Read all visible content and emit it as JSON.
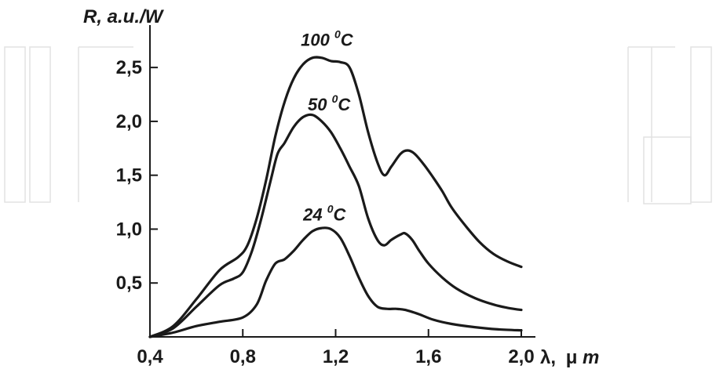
{
  "chart_data": {
    "type": "line",
    "title": "",
    "xlabel_symbol": "λ,",
    "xlabel_unit_mu": "μ",
    "xlabel_unit_m": "m",
    "ylabel": "R, a.u./W",
    "xlim": [
      0.4,
      2.0
    ],
    "ylim": [
      0.0,
      2.85
    ],
    "grid": false,
    "x_ticks": [
      0.4,
      0.8,
      1.2,
      1.6,
      2.0
    ],
    "x_tick_labels": [
      "0,4",
      "0,8",
      "1,2",
      "1,6",
      "2,0"
    ],
    "y_ticks": [
      0.5,
      1.0,
      1.5,
      2.0,
      2.5
    ],
    "y_tick_labels": [
      "0,5",
      "1,0",
      "1,5",
      "2,0",
      "2,5"
    ],
    "series": [
      {
        "label_main": "100 ",
        "label_sup": "0",
        "label_end": "C",
        "label_anchor": [
          1.05,
          2.7
        ],
        "x": [
          0.4,
          0.5,
          0.6,
          0.7,
          0.78,
          0.82,
          0.86,
          0.9,
          0.94,
          0.98,
          1.02,
          1.06,
          1.1,
          1.14,
          1.18,
          1.22,
          1.26,
          1.3,
          1.34,
          1.38,
          1.41,
          1.44,
          1.48,
          1.51,
          1.54,
          1.58,
          1.62,
          1.66,
          1.7,
          1.76,
          1.82,
          1.88,
          1.94,
          2.0
        ],
        "values": [
          0.0,
          0.1,
          0.35,
          0.62,
          0.74,
          0.85,
          1.1,
          1.45,
          1.86,
          2.18,
          2.4,
          2.53,
          2.59,
          2.59,
          2.56,
          2.55,
          2.5,
          2.25,
          1.9,
          1.62,
          1.5,
          1.58,
          1.7,
          1.73,
          1.7,
          1.6,
          1.48,
          1.35,
          1.2,
          1.03,
          0.88,
          0.77,
          0.7,
          0.65
        ]
      },
      {
        "label_main": "50 ",
        "label_sup": "0",
        "label_end": "C",
        "label_anchor": [
          1.08,
          2.1
        ],
        "x": [
          0.4,
          0.5,
          0.6,
          0.7,
          0.76,
          0.8,
          0.84,
          0.88,
          0.92,
          0.95,
          0.98,
          1.02,
          1.06,
          1.1,
          1.14,
          1.18,
          1.22,
          1.26,
          1.3,
          1.34,
          1.38,
          1.41,
          1.44,
          1.48,
          1.5,
          1.53,
          1.56,
          1.6,
          1.66,
          1.72,
          1.8,
          1.88,
          1.94,
          2.0
        ],
        "values": [
          0.0,
          0.08,
          0.28,
          0.48,
          0.54,
          0.6,
          0.8,
          1.1,
          1.45,
          1.7,
          1.8,
          1.95,
          2.04,
          2.06,
          2.0,
          1.9,
          1.75,
          1.58,
          1.4,
          1.1,
          0.9,
          0.85,
          0.9,
          0.95,
          0.96,
          0.9,
          0.8,
          0.68,
          0.55,
          0.45,
          0.36,
          0.3,
          0.27,
          0.25
        ]
      },
      {
        "label_main": "24 ",
        "label_sup": "0",
        "label_end": "C",
        "label_anchor": [
          1.06,
          1.08
        ],
        "x": [
          0.4,
          0.5,
          0.6,
          0.7,
          0.8,
          0.86,
          0.9,
          0.94,
          0.98,
          1.02,
          1.06,
          1.1,
          1.14,
          1.18,
          1.22,
          1.26,
          1.3,
          1.34,
          1.38,
          1.42,
          1.46,
          1.5,
          1.56,
          1.62,
          1.7,
          1.8,
          1.9,
          2.0
        ],
        "values": [
          0.0,
          0.04,
          0.1,
          0.14,
          0.18,
          0.3,
          0.52,
          0.68,
          0.72,
          0.8,
          0.9,
          0.98,
          1.01,
          1.0,
          0.92,
          0.75,
          0.55,
          0.38,
          0.28,
          0.26,
          0.26,
          0.25,
          0.21,
          0.16,
          0.12,
          0.09,
          0.07,
          0.06
        ]
      }
    ]
  }
}
